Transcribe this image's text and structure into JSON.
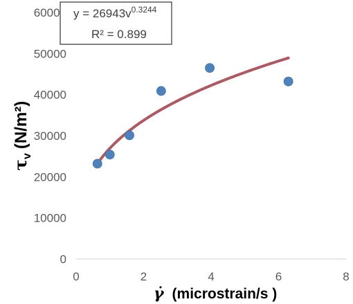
{
  "chart_data": {
    "type": "scatter",
    "xlabel": {
      "symbol": "γ̇",
      "text": "(microstrain/s )"
    },
    "ylabel": {
      "symbol": "τ",
      "subscript": "v",
      "unit": "(N/m²)"
    },
    "xlim": [
      0,
      8
    ],
    "ylim": [
      0,
      60000
    ],
    "x_ticks": [
      0,
      2,
      4,
      6,
      8
    ],
    "y_ticks": [
      0,
      10000,
      20000,
      30000,
      40000,
      50000,
      60000
    ],
    "x_tick_labels": [
      "0",
      "2",
      "4",
      "6",
      "8"
    ],
    "y_tick_labels": [
      "0",
      "10000",
      "20000",
      "30000",
      "40000",
      "50000",
      "60000"
    ],
    "grid": false,
    "series": [
      {
        "type": "scatter",
        "color": "#4f81bd",
        "points": [
          {
            "x": 0.63,
            "y": 23200
          },
          {
            "x": 1.0,
            "y": 25400
          },
          {
            "x": 1.58,
            "y": 30100
          },
          {
            "x": 2.52,
            "y": 40900
          },
          {
            "x": 3.96,
            "y": 46500
          },
          {
            "x": 6.29,
            "y": 43200
          }
        ]
      },
      {
        "type": "trendline",
        "model": "power",
        "coefficient": 26943,
        "exponent": 0.3244,
        "x_range": [
          0.63,
          6.29
        ],
        "color": "#c0504d",
        "dash_color": "#4f81bd"
      }
    ],
    "annotation": {
      "equation_prefix": "y = 26943v",
      "equation_exponent": "0.3244",
      "r_squared": "R² = 0.899"
    }
  }
}
